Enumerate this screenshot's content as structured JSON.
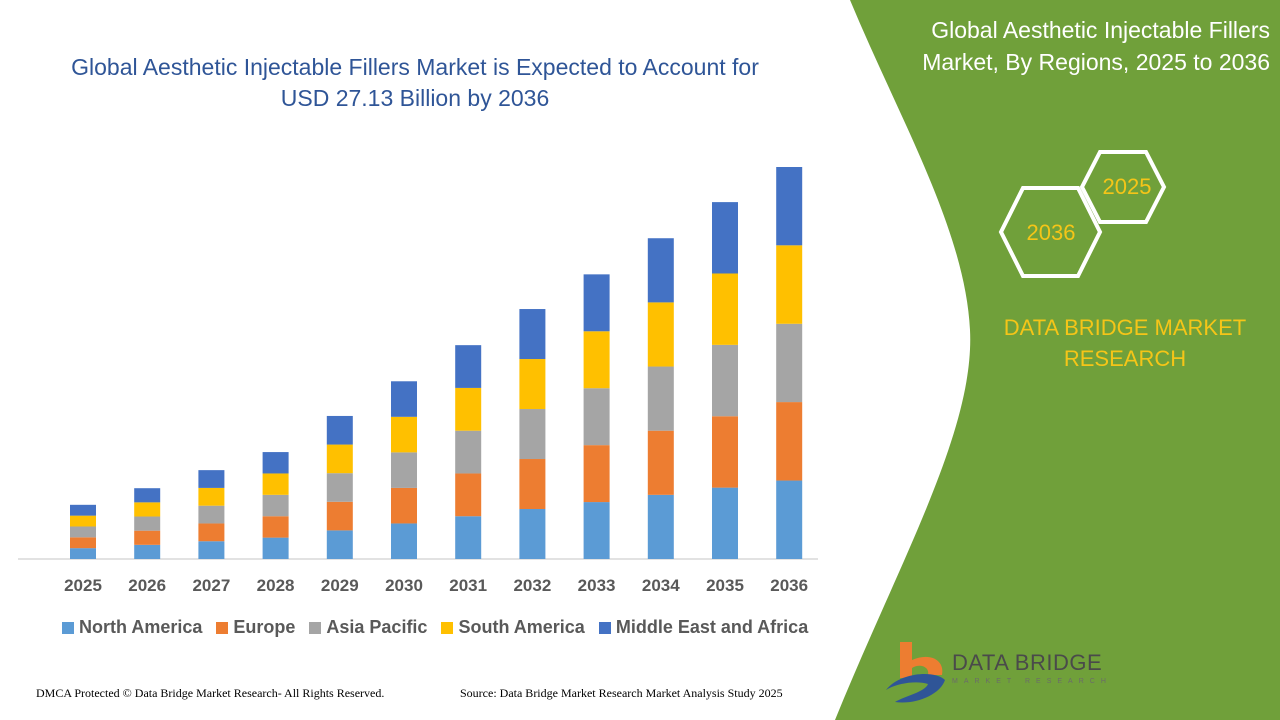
{
  "title": "Global Aesthetic Injectable Fillers Market is Expected to Account for USD 27.13 Billion by 2036",
  "side_panel": {
    "title": "Global Aesthetic Injectable Fillers Market, By Regions, 2025 to 2036",
    "hex_start": "2025",
    "hex_end": "2036",
    "brand": "DATA BRIDGE MARKET RESEARCH"
  },
  "logo": {
    "name": "DATA BRIDGE",
    "tagline": "MARKET RESEARCH"
  },
  "footer": {
    "copyright": "DMCA Protected © Data Bridge Market Research- All Rights Reserved.",
    "source": "Source: Data Bridge Market Research Market Analysis Study 2025"
  },
  "colors": {
    "panel_green": "#70a03a",
    "accent_yellow": "#f5c518",
    "title_blue": "#2f5597"
  },
  "chart_data": {
    "type": "bar",
    "stacked": true,
    "title": "Global Aesthetic Injectable Fillers Market is Expected to Account for USD 27.13 Billion by 2036",
    "xlabel": "",
    "ylabel": "",
    "grid": false,
    "legend": "bottom",
    "ylim": [
      0,
      27.13
    ],
    "categories": [
      "2025",
      "2026",
      "2027",
      "2028",
      "2029",
      "2030",
      "2031",
      "2032",
      "2033",
      "2034",
      "2035",
      "2036"
    ],
    "series": [
      {
        "name": "North America",
        "color": "#5b9bd5",
        "values": [
          0.75,
          0.98,
          1.23,
          1.48,
          1.98,
          2.46,
          2.96,
          3.46,
          3.94,
          4.44,
          4.94,
          5.43
        ]
      },
      {
        "name": "Europe",
        "color": "#ed7d31",
        "values": [
          0.75,
          0.98,
          1.23,
          1.48,
          1.98,
          2.46,
          2.96,
          3.46,
          3.94,
          4.44,
          4.94,
          5.43
        ]
      },
      {
        "name": "Asia Pacific",
        "color": "#a5a5a5",
        "values": [
          0.75,
          0.98,
          1.23,
          1.48,
          1.98,
          2.46,
          2.96,
          3.46,
          3.94,
          4.44,
          4.94,
          5.42
        ]
      },
      {
        "name": "South America",
        "color": "#ffc000",
        "values": [
          0.75,
          0.98,
          1.23,
          1.48,
          1.98,
          2.46,
          2.96,
          3.46,
          3.94,
          4.44,
          4.94,
          5.43
        ]
      },
      {
        "name": "Middle East and Africa",
        "color": "#4472c4",
        "values": [
          0.75,
          0.98,
          1.23,
          1.48,
          1.98,
          2.46,
          2.96,
          3.46,
          3.94,
          4.44,
          4.94,
          5.42
        ]
      }
    ]
  }
}
